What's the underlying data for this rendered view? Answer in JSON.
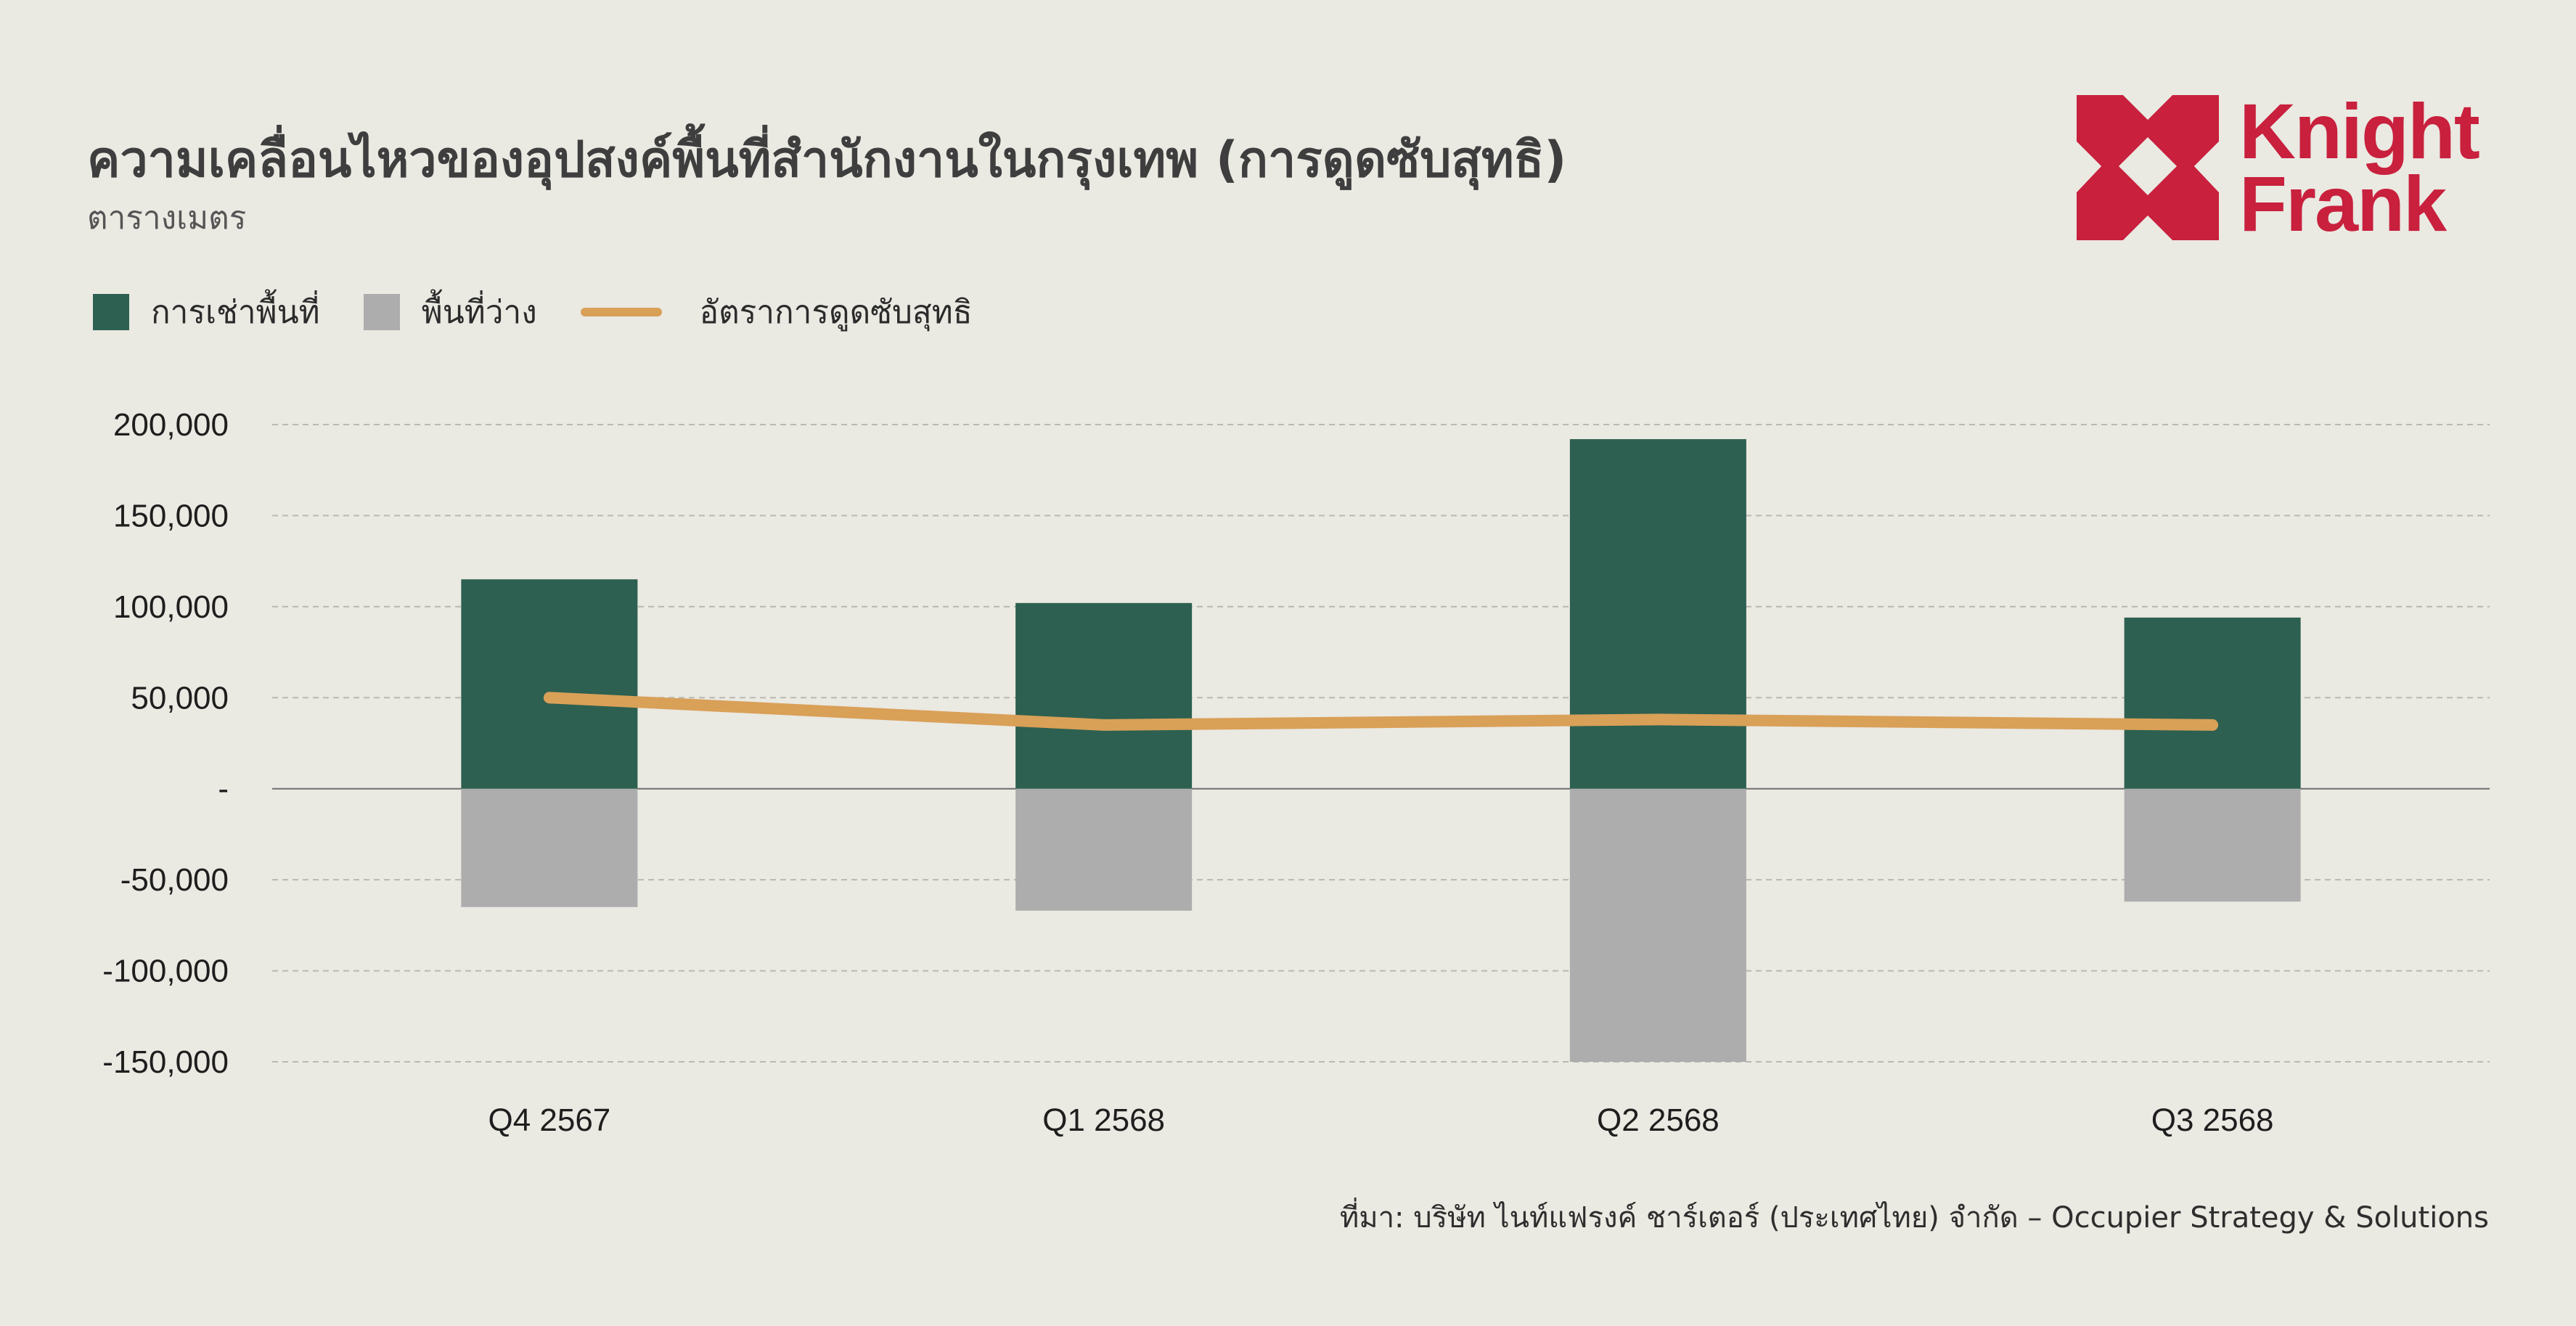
{
  "title": "ความเคลื่อนไหวของอุปสงค์พื้นที่สำนักงานในกรุงเทพ (การดูดซับสุทธิ)",
  "subtitle": "ตารางเมตร",
  "logo": {
    "line1": "Knight",
    "line2": "Frank",
    "color": "#C8203D"
  },
  "source": "ที่มา: บริษัท ไนท์แฟรงค์ ชาร์เตอร์ (ประเทศไทย) จำกัด – Occupier Strategy & Solutions",
  "colors": {
    "leasing": "#2D6050",
    "vacancy": "#ADADAD",
    "net_absorption": "#D9A058"
  },
  "chart_data": {
    "type": "bar",
    "categories": [
      "Q4 2567",
      "Q1 2568",
      "Q2 2568",
      "Q3 2568"
    ],
    "series": [
      {
        "name": "การเช่าพื้นที่",
        "kind": "bar",
        "values": [
          115000,
          102000,
          192000,
          94000
        ]
      },
      {
        "name": "พื้นที่ว่าง",
        "kind": "bar",
        "values": [
          -65000,
          -67000,
          -150000,
          -62000
        ]
      },
      {
        "name": "อัตราการดูดซับสุทธิ",
        "kind": "line",
        "values": [
          50000,
          35000,
          38000,
          35000
        ]
      }
    ],
    "ylim": [
      -150000,
      200000
    ],
    "yticks": [
      {
        "value": 200000,
        "label": "200,000"
      },
      {
        "value": 150000,
        "label": "150,000"
      },
      {
        "value": 100000,
        "label": "100,000"
      },
      {
        "value": 50000,
        "label": "50,000"
      },
      {
        "value": 0,
        "label": "-"
      },
      {
        "value": -50000,
        "label": "-50,000"
      },
      {
        "value": -100000,
        "label": "-100,000"
      },
      {
        "value": -150000,
        "label": "-150,000"
      }
    ],
    "grid": true,
    "legend_position": "top-left",
    "title": "ความเคลื่อนไหวของอุปสงค์พื้นที่สำนักงานในกรุงเทพ (การดูดซับสุทธิ)",
    "ylabel": "ตารางเมตร",
    "xlabel": ""
  }
}
